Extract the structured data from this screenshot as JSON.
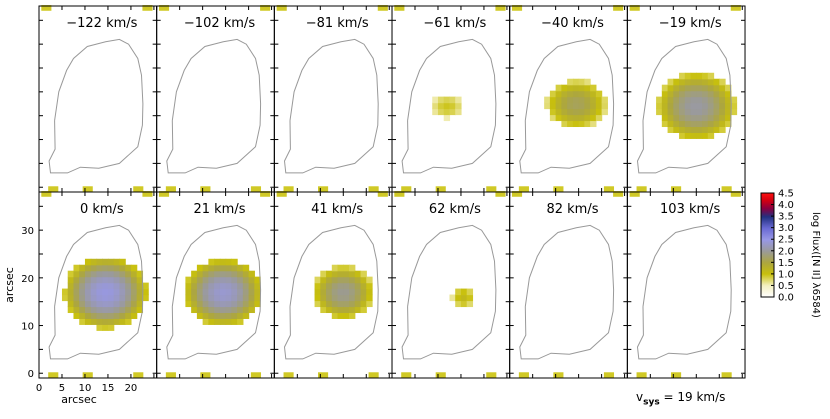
{
  "chart_data": {
    "type": "heatmap",
    "description_of_panels": "channel maps",
    "panels": [
      {
        "label": "−122 km/s",
        "blob": null
      },
      {
        "label": "−102 km/s",
        "blob": null
      },
      {
        "label": "−81 km/s",
        "blob": null
      },
      {
        "label": "−61 km/s",
        "blob": {
          "cx": 12.0,
          "cy": 17.0,
          "rx": 3.5,
          "ry": 2.5,
          "peak": 0.6
        }
      },
      {
        "label": "−40 km/s",
        "blob": {
          "cx": 14.5,
          "cy": 17.5,
          "rx": 6.5,
          "ry": 5.0,
          "peak": 1.3
        }
      },
      {
        "label": "−19 km/s",
        "blob": {
          "cx": 15.0,
          "cy": 17.0,
          "rx": 8.5,
          "ry": 7.0,
          "peak": 1.7
        }
      },
      {
        "label": "0 km/s",
        "blob": {
          "cx": 14.5,
          "cy": 17.0,
          "rx": 9.0,
          "ry": 7.5,
          "peak": 2.1
        }
      },
      {
        "label": "21 km/s",
        "blob": {
          "cx": 14.5,
          "cy": 17.0,
          "rx": 8.5,
          "ry": 7.0,
          "peak": 2.0
        }
      },
      {
        "label": "41 km/s",
        "blob": {
          "cx": 15.0,
          "cy": 17.0,
          "rx": 6.5,
          "ry": 5.5,
          "peak": 1.6
        }
      },
      {
        "label": "62 km/s",
        "blob": {
          "cx": 15.5,
          "cy": 16.0,
          "rx": 2.5,
          "ry": 2.2,
          "peak": 0.8
        }
      },
      {
        "label": "82 km/s",
        "blob": null
      },
      {
        "label": "103 km/s",
        "blob": null
      }
    ],
    "x_ticks": [
      "0",
      "5",
      "10",
      "15",
      "20"
    ],
    "y_ticks": [
      "10",
      "20",
      "30"
    ],
    "xlim": [
      0,
      25.6
    ],
    "ylim": [
      -1,
      38
    ],
    "xlabel": "arcsec",
    "ylabel": "arcsec",
    "colorbar": {
      "label": "log Flux([N II] λ6584)",
      "ticks": [
        "4.5",
        "4.0",
        "3.5",
        "3.0",
        "2.5",
        "2.0",
        "1.5",
        "1.0",
        "0.5",
        "0.0"
      ],
      "range": [
        0.0,
        4.5
      ]
    },
    "footnote": {
      "v": "v",
      "sub": "sys",
      "rest": " = 19 km/s"
    },
    "colors": {
      "frame": "#000000",
      "contour": "#999999",
      "edge_marks": "#c8c000"
    }
  }
}
